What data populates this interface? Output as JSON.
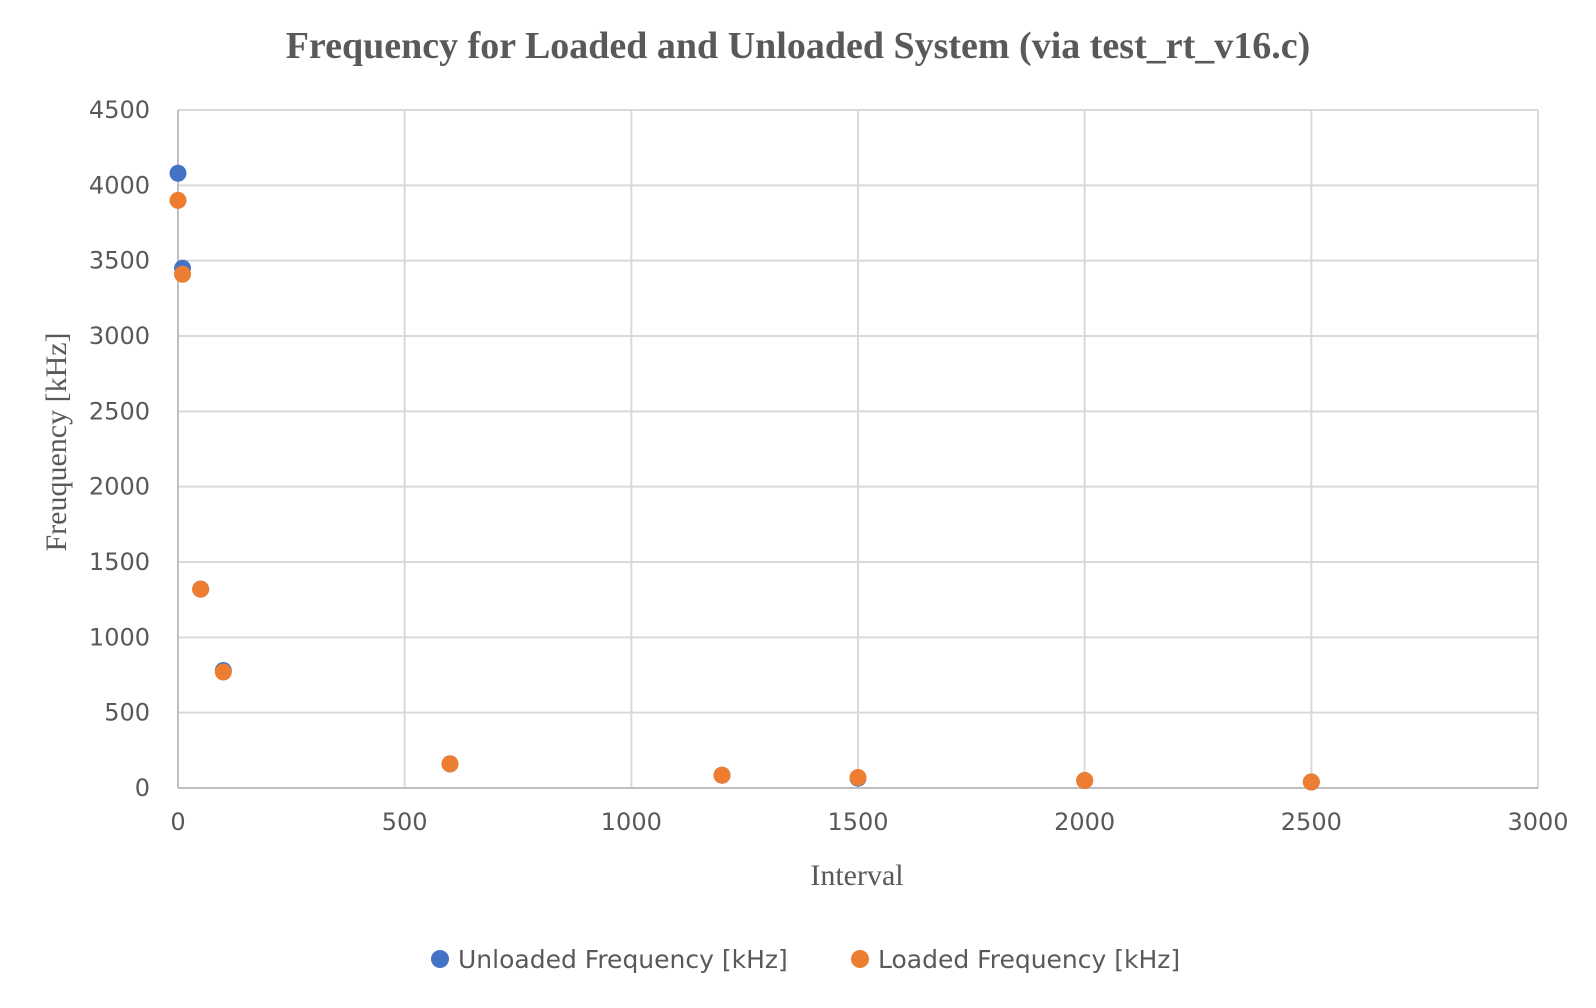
{
  "chart_data": {
    "type": "scatter",
    "title": "Frequency for Loaded and Unloaded System (via test_rt_v16.c)",
    "xlabel": "Interval",
    "ylabel": "Freuquency [kHz]",
    "xlim": [
      0,
      3000
    ],
    "ylim": [
      0,
      4500
    ],
    "xticks": [
      "0",
      "500",
      "1000",
      "1500",
      "2000",
      "2500",
      "3000"
    ],
    "yticks": [
      "0",
      "500",
      "1000",
      "1500",
      "2000",
      "2500",
      "3000",
      "3500",
      "4000",
      "4500"
    ],
    "grid": true,
    "legend_position": "bottom",
    "series": [
      {
        "name": "Unloaded Frequency [kHz]",
        "color": "#4472c4",
        "points": [
          {
            "x": 0,
            "y": 4080
          },
          {
            "x": 10,
            "y": 3450
          },
          {
            "x": 50,
            "y": 1320
          },
          {
            "x": 100,
            "y": 780
          },
          {
            "x": 600,
            "y": 160
          },
          {
            "x": 1200,
            "y": 85
          },
          {
            "x": 1500,
            "y": 65
          },
          {
            "x": 2000,
            "y": 50
          },
          {
            "x": 2500,
            "y": 40
          }
        ]
      },
      {
        "name": "Loaded Frequency [kHz]",
        "color": "#ed7d31",
        "points": [
          {
            "x": 0,
            "y": 3900
          },
          {
            "x": 10,
            "y": 3410
          },
          {
            "x": 50,
            "y": 1320
          },
          {
            "x": 100,
            "y": 770
          },
          {
            "x": 600,
            "y": 160
          },
          {
            "x": 1200,
            "y": 85
          },
          {
            "x": 1500,
            "y": 70
          },
          {
            "x": 2000,
            "y": 50
          },
          {
            "x": 2500,
            "y": 40
          }
        ]
      }
    ]
  }
}
